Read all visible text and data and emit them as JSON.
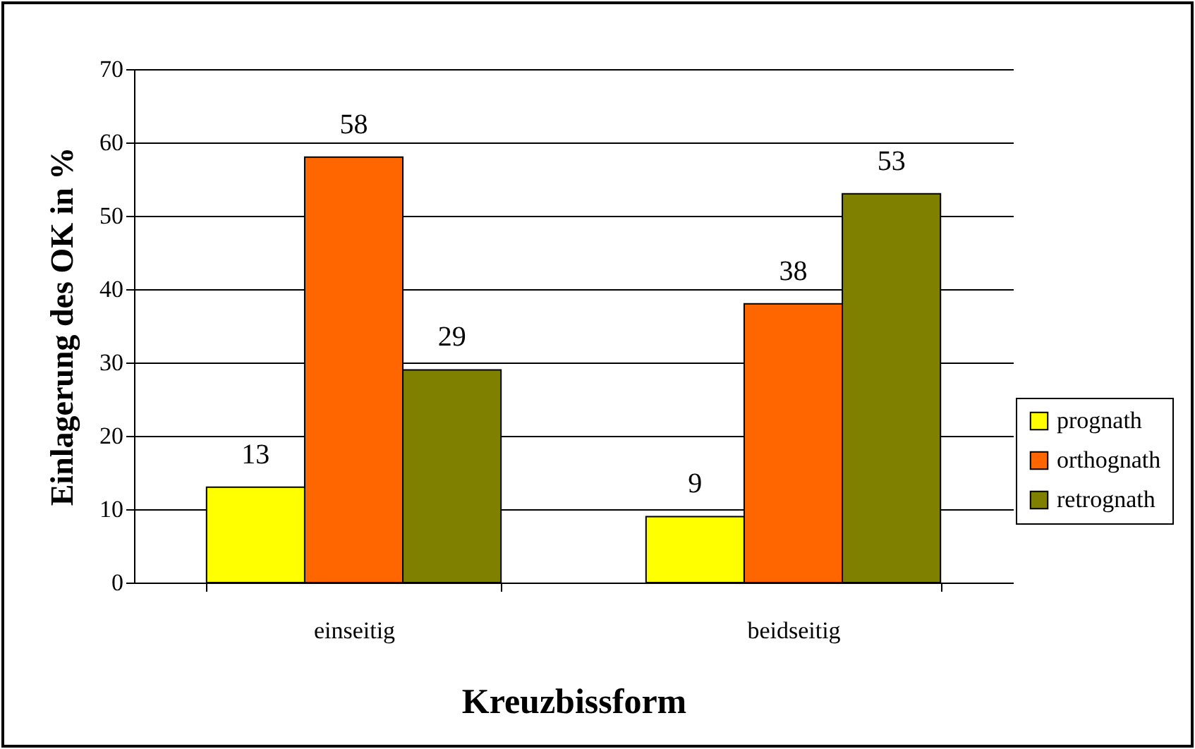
{
  "chart_data": {
    "type": "bar",
    "xlabel": "Kreuzbissform",
    "ylabel": "Einlagerung des OK in %",
    "categories": [
      "einseitig",
      "beidseitig"
    ],
    "series": [
      {
        "name": "prognath",
        "color": "#ffff00",
        "values": [
          13,
          9
        ]
      },
      {
        "name": "orthognath",
        "color": "#ff6600",
        "values": [
          58,
          38
        ]
      },
      {
        "name": "retrognath",
        "color": "#808000",
        "values": [
          29,
          53
        ]
      }
    ],
    "ylim": [
      0,
      70
    ],
    "yticks": [
      0,
      10,
      20,
      30,
      40,
      50,
      60,
      70
    ],
    "grid": "y",
    "legend": "right",
    "data_labels": true
  }
}
